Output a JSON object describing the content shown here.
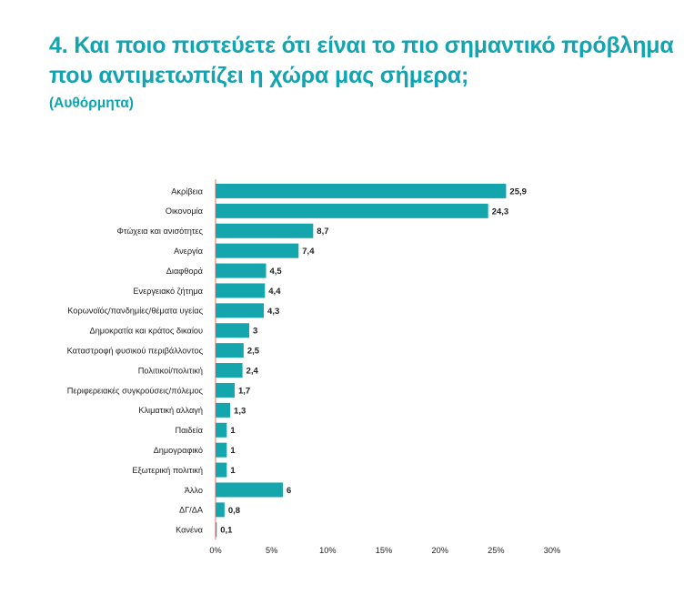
{
  "header": {
    "title": "4. Και ποιο πιστεύετε ότι είναι το πιο σημαντικό πρόβλημα που αντιμετωπίζει η χώρα μας σήμερα;",
    "subtitle": "(Αυθόρμητα)"
  },
  "colors": {
    "accent": "#12a4b1",
    "bar": "#15a5ad",
    "axis": "#e58a8a"
  },
  "chart_data": {
    "type": "bar",
    "orientation": "horizontal",
    "categories": [
      "Ακρίβεια",
      "Οικονομία",
      "Φτώχεια και ανισότητες",
      "Ανεργία",
      "Διαφθορά",
      "Ενεργειακό ζήτημα",
      "Κορωνοϊός/πανδημίες/θέματα υγείας",
      "Δημοκρατία και κράτος δικαίου",
      "Καταστροφή φυσικού περιβάλλοντος",
      "Πολιτικοί/πολιτική",
      "Περιφερειακές συγκρούσεις/πόλεμος",
      "Κλιματική αλλαγή",
      "Παιδεία",
      "Δημογραφικό",
      "Εξωτερική πολιτική",
      "Άλλο",
      "ΔΓ/ΔΑ",
      "Κανένα"
    ],
    "values": [
      25.9,
      24.3,
      8.7,
      7.4,
      4.5,
      4.4,
      4.3,
      3,
      2.5,
      2.4,
      1.7,
      1.3,
      1,
      1,
      1,
      6,
      0.8,
      0.1
    ],
    "value_labels": [
      "25,9",
      "24,3",
      "8,7",
      "7,4",
      "4,5",
      "4,4",
      "4,3",
      "3",
      "2,5",
      "2,4",
      "1,7",
      "1,3",
      "1",
      "1",
      "1",
      "6",
      "0,8",
      "0,1"
    ],
    "xlim": [
      0,
      30
    ],
    "x_ticks": [
      0,
      5,
      10,
      15,
      20,
      25,
      30
    ],
    "x_tick_labels": [
      "0%",
      "5%",
      "10%",
      "15%",
      "20%",
      "25%",
      "30%"
    ],
    "grid": false
  }
}
